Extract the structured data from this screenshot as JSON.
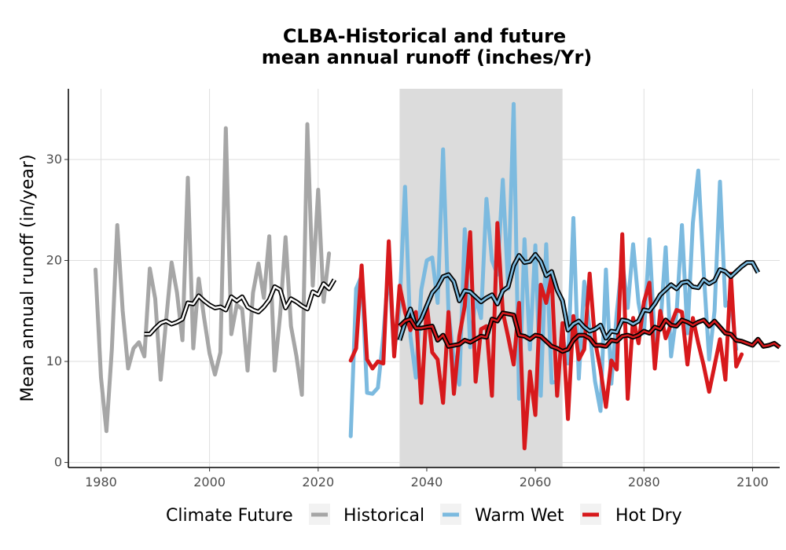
{
  "chart_data": {
    "type": "line",
    "title_line1": "CLBA-Historical and future",
    "title_line2": "mean annual runoff (inches/Yr)",
    "xlabel": "",
    "ylabel": "Mean annual runoff (in/year)",
    "xlim": [
      1974,
      2105
    ],
    "ylim": [
      -0.5,
      37
    ],
    "xticks": [
      1980,
      2000,
      2020,
      2040,
      2060,
      2080,
      2100
    ],
    "yticks": [
      0,
      10,
      20,
      30
    ],
    "grid": true,
    "shaded_period": [
      2035,
      2065
    ],
    "legend": {
      "title": "Climate Future",
      "position": "bottom",
      "entries": [
        "Historical",
        "Warm Wet",
        "Hot Dry"
      ]
    },
    "colors": {
      "Historical": "#a6a6a6",
      "Warm Wet": "#7cbadf",
      "Hot Dry": "#d7191c",
      "smooth": "#000000",
      "shade": "#dcdcdc",
      "grid": "#dedede"
    },
    "series": [
      {
        "name": "Historical",
        "x_start": 1979,
        "values": [
          19.1,
          8.4,
          3.1,
          11.2,
          23.5,
          15.0,
          9.3,
          11.3,
          11.9,
          10.5,
          19.2,
          16.2,
          8.2,
          14.1,
          19.8,
          16.8,
          12.1,
          28.2,
          11.3,
          18.2,
          14.3,
          10.8,
          8.7,
          10.9,
          33.1,
          12.7,
          15.6,
          15.2,
          9.1,
          16.8,
          19.7,
          16.3,
          22.4,
          9.1,
          14.6,
          22.3,
          13.5,
          10.5,
          6.7,
          33.5,
          17.5,
          27.0,
          15.9,
          20.7
        ]
      },
      {
        "name": "Historical (smoothed)",
        "x_start": 1988,
        "values": [
          12.7,
          12.7,
          13.3,
          13.8,
          14.0,
          13.7,
          13.9,
          14.2,
          15.8,
          15.7,
          16.5,
          16.0,
          15.6,
          15.3,
          15.4,
          15.1,
          16.4,
          16.0,
          16.4,
          15.4,
          15.1,
          14.9,
          15.4,
          16.1,
          17.4,
          17.1,
          15.3,
          16.2,
          15.9,
          15.5,
          15.2,
          16.9,
          16.6,
          17.7,
          17.2,
          18.1
        ]
      },
      {
        "name": "Warm Wet",
        "x_start": 2026,
        "values": [
          2.6,
          17.2,
          18.5,
          6.9,
          6.8,
          7.4,
          12.5,
          19.5,
          10.8,
          15.5,
          27.3,
          12.5,
          8.4,
          17.1,
          20.0,
          20.3,
          15.8,
          31.0,
          14.9,
          10.1,
          7.7,
          23.1,
          11.4,
          16.4,
          14.3,
          26.1,
          20.0,
          18.6,
          28.0,
          17.2,
          35.5,
          6.3,
          22.1,
          11.2,
          21.5,
          6.6,
          21.6,
          7.9,
          8.0,
          12.5,
          9.8,
          24.2,
          8.3,
          17.9,
          13.1,
          8.0,
          5.1,
          19.1,
          7.8,
          14.8,
          20.0,
          15.3,
          21.6,
          15.8,
          12.8,
          22.1,
          12.0,
          13.3,
          21.3,
          10.5,
          14.7,
          23.5,
          12.8,
          23.7,
          28.9,
          18.9,
          10.2,
          15.0,
          27.8,
          15.5,
          16.1,
          11.2
        ]
      },
      {
        "name": "Warm Wet (smoothed)",
        "x_start": 2035,
        "values": [
          12.1,
          13.8,
          15.2,
          13.4,
          14.2,
          15.5,
          16.8,
          17.4,
          18.4,
          18.6,
          17.9,
          16.0,
          17.0,
          16.9,
          16.4,
          15.9,
          16.3,
          16.6,
          15.7,
          17.0,
          17.4,
          19.5,
          20.5,
          19.8,
          19.9,
          20.6,
          19.9,
          18.5,
          18.9,
          17.1,
          16.0,
          13.1,
          13.7,
          14.0,
          13.4,
          13.0,
          13.2,
          13.6,
          12.3,
          13.0,
          12.9,
          14.1,
          14.0,
          13.7,
          14.0,
          15.1,
          15.0,
          15.7,
          16.6,
          17.1,
          17.6,
          17.2,
          17.8,
          17.9,
          17.4,
          17.3,
          18.1,
          17.7,
          18.0,
          19.1,
          18.9,
          18.4,
          18.9,
          19.4,
          19.8,
          19.8,
          18.8
        ]
      },
      {
        "name": "Hot Dry",
        "x_start": 2026,
        "values": [
          10.1,
          11.3,
          19.5,
          10.2,
          9.3,
          10.0,
          9.8,
          21.9,
          10.5,
          17.5,
          14.9,
          13.1,
          14.9,
          5.9,
          15.6,
          10.9,
          10.2,
          5.9,
          14.9,
          6.8,
          12.5,
          15.5,
          22.8,
          8.0,
          13.2,
          13.5,
          6.6,
          23.7,
          14.9,
          12.4,
          9.7,
          15.8,
          1.4,
          9.0,
          4.7,
          17.6,
          15.8,
          18.4,
          6.6,
          13.8,
          4.3,
          14.5,
          10.2,
          11.2,
          18.7,
          12.0,
          9.2,
          5.5,
          10.1,
          9.2,
          22.6,
          6.3,
          14.3,
          11.8,
          15.9,
          17.8,
          9.3,
          15.0,
          12.3,
          13.7,
          15.1,
          14.9,
          9.7,
          14.3,
          11.8,
          9.6,
          7.0,
          9.6,
          12.2,
          8.2,
          18.7,
          9.5,
          10.7
        ]
      },
      {
        "name": "Hot Dry (smoothed)",
        "x_start": 2035,
        "values": [
          13.5,
          14.0,
          14.2,
          13.3,
          13.3,
          13.4,
          13.5,
          12.1,
          12.6,
          11.5,
          11.6,
          11.7,
          12.1,
          11.9,
          12.2,
          12.5,
          12.4,
          14.2,
          14.0,
          14.8,
          14.7,
          14.6,
          12.6,
          12.5,
          12.2,
          12.6,
          12.5,
          12.0,
          11.5,
          11.3,
          11.0,
          11.2,
          12.1,
          12.6,
          12.6,
          12.3,
          11.6,
          11.6,
          11.5,
          12.1,
          12.0,
          12.5,
          12.6,
          12.4,
          12.6,
          13.0,
          12.8,
          13.4,
          13.2,
          14.1,
          13.6,
          13.5,
          14.1,
          13.9,
          13.6,
          13.9,
          14.1,
          13.5,
          14.0,
          13.4,
          12.8,
          12.7,
          12.1,
          12.0,
          11.8,
          11.6,
          12.2,
          11.5,
          11.6,
          11.8,
          11.4
        ]
      }
    ]
  }
}
